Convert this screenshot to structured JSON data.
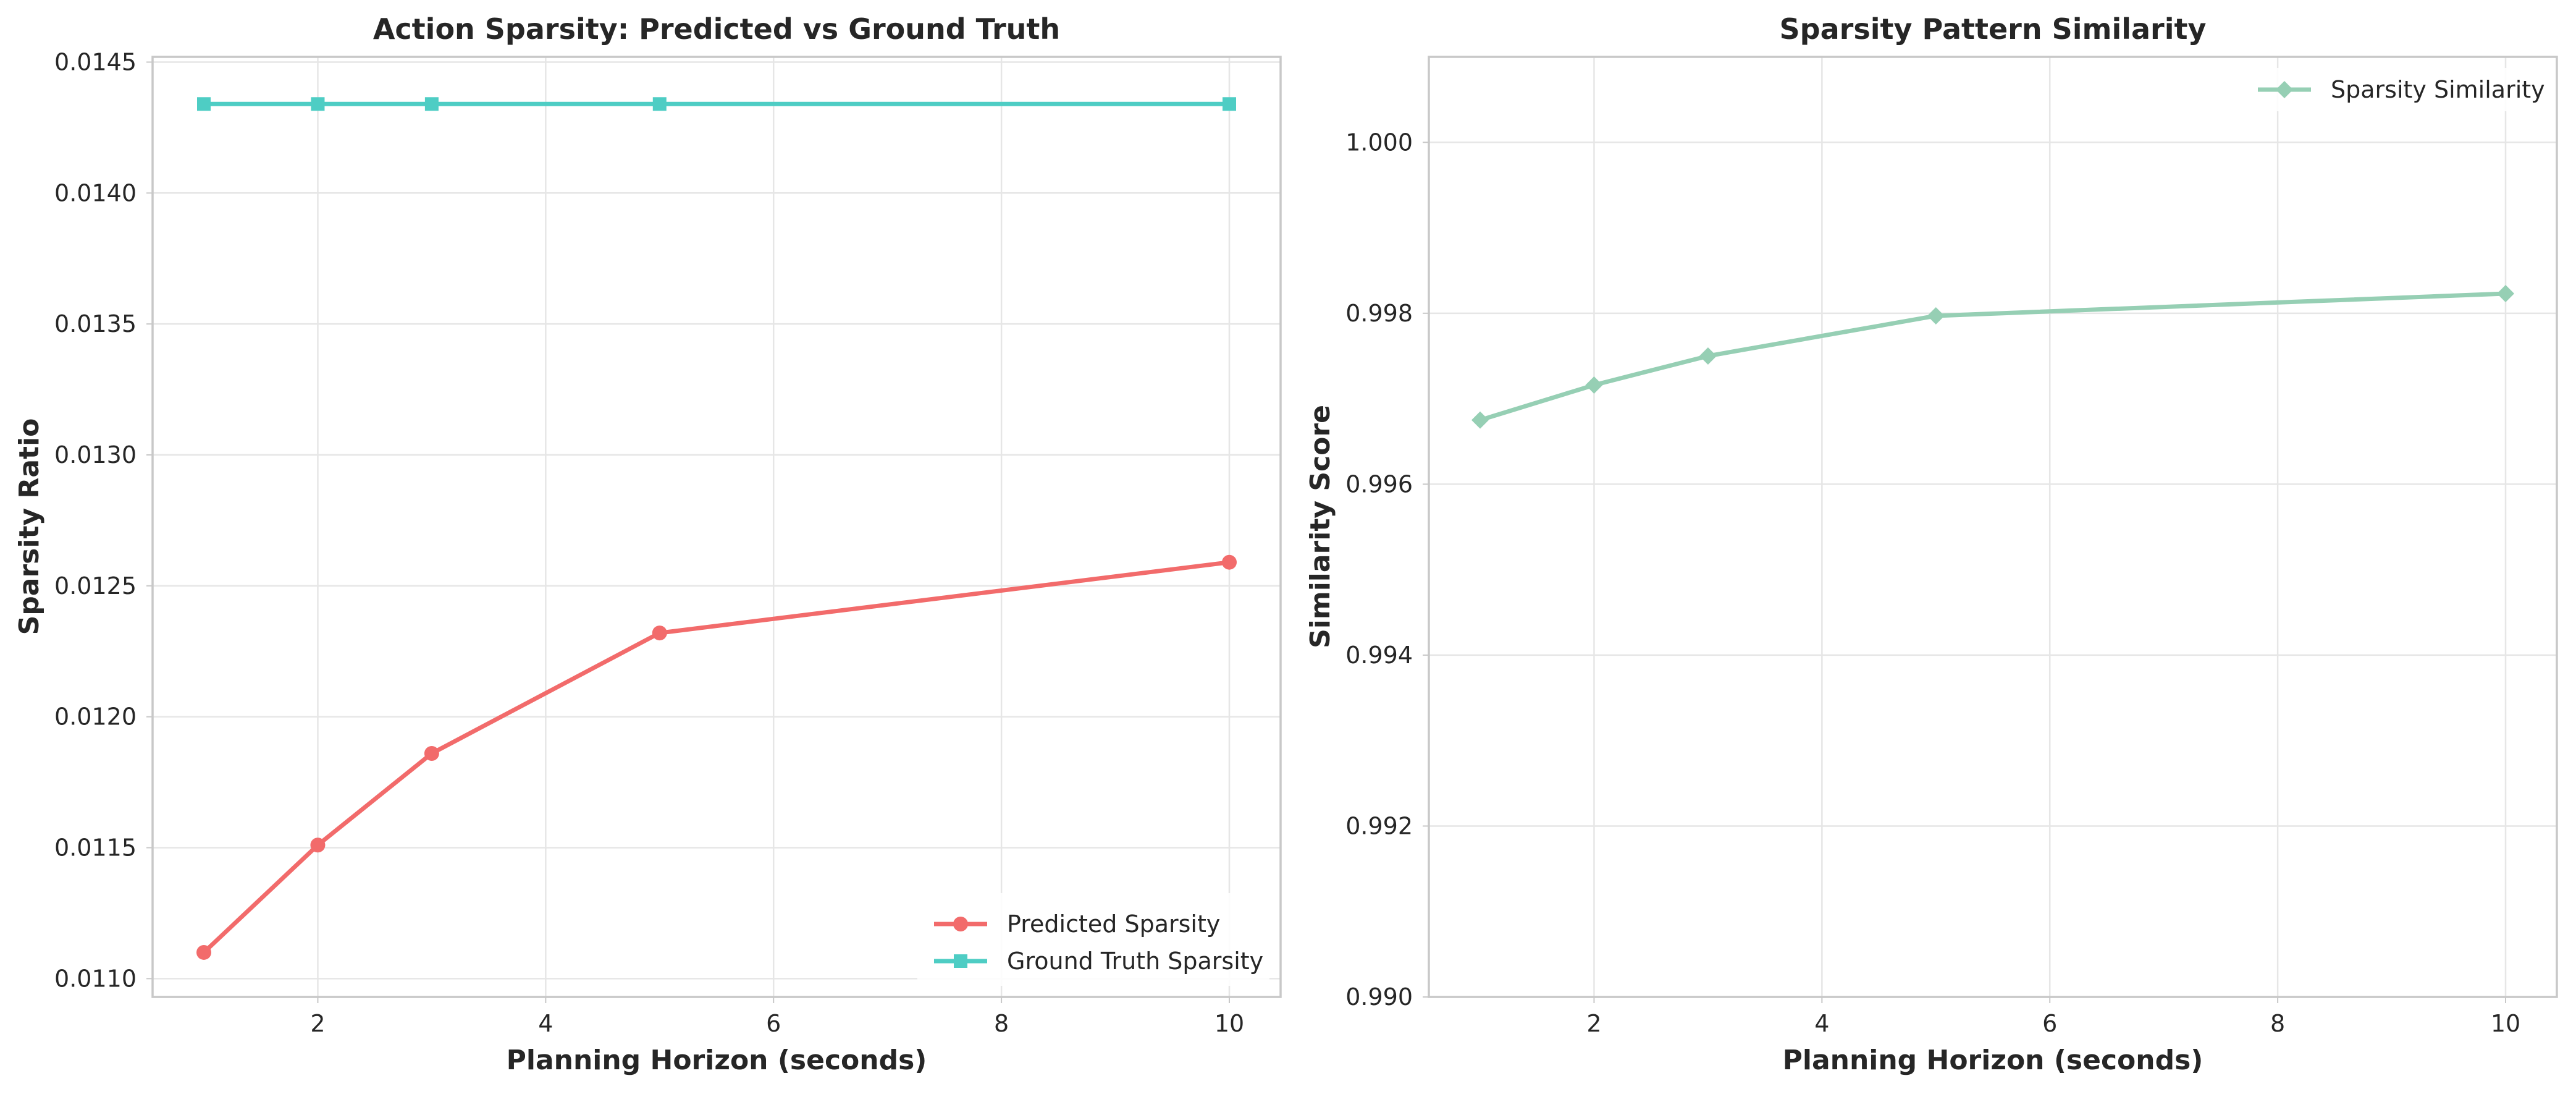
{
  "chart_data": [
    {
      "type": "line",
      "title": "Action Sparsity: Predicted vs Ground Truth",
      "xlabel": "Planning Horizon (seconds)",
      "ylabel": "Sparsity Ratio",
      "xlim": [
        0.55,
        10.45
      ],
      "ylim": [
        0.01093,
        0.01452
      ],
      "xticks": [
        2,
        4,
        6,
        8,
        10
      ],
      "yticks": [
        0.011,
        0.0115,
        0.012,
        0.0125,
        0.013,
        0.0135,
        0.014,
        0.0145
      ],
      "ytick_labels": [
        "0.0110",
        "0.0115",
        "0.0120",
        "0.0125",
        "0.0130",
        "0.0135",
        "0.0140",
        "0.0145"
      ],
      "grid": true,
      "legend_position": "lower-right",
      "x": [
        1,
        2,
        3,
        5,
        10
      ],
      "series": [
        {
          "name": "Predicted Sparsity",
          "color": "#f26b6b",
          "marker": "circle",
          "values": [
            0.0111,
            0.01151,
            0.01186,
            0.01232,
            0.01259
          ]
        },
        {
          "name": "Ground Truth Sparsity",
          "color": "#4ecdc4",
          "marker": "square",
          "values": [
            0.01434,
            0.01434,
            0.01434,
            0.01434,
            0.01434
          ]
        }
      ]
    },
    {
      "type": "line",
      "title": "Sparsity Pattern Similarity",
      "xlabel": "Planning Horizon (seconds)",
      "ylabel": "Similarity Score",
      "xlim": [
        0.55,
        10.45
      ],
      "ylim": [
        0.99,
        1.001
      ],
      "xticks": [
        2,
        4,
        6,
        8,
        10
      ],
      "yticks": [
        0.99,
        0.992,
        0.994,
        0.996,
        0.998,
        1.0
      ],
      "ytick_labels": [
        "0.990",
        "0.992",
        "0.994",
        "0.996",
        "0.998",
        "1.000"
      ],
      "grid": true,
      "legend_position": "upper-right",
      "x": [
        1,
        2,
        3,
        5,
        10
      ],
      "series": [
        {
          "name": "Sparsity Similarity",
          "color": "#96cfb4",
          "marker": "diamond",
          "values": [
            0.99675,
            0.99716,
            0.9975,
            0.99797,
            0.99823
          ]
        }
      ]
    }
  ]
}
